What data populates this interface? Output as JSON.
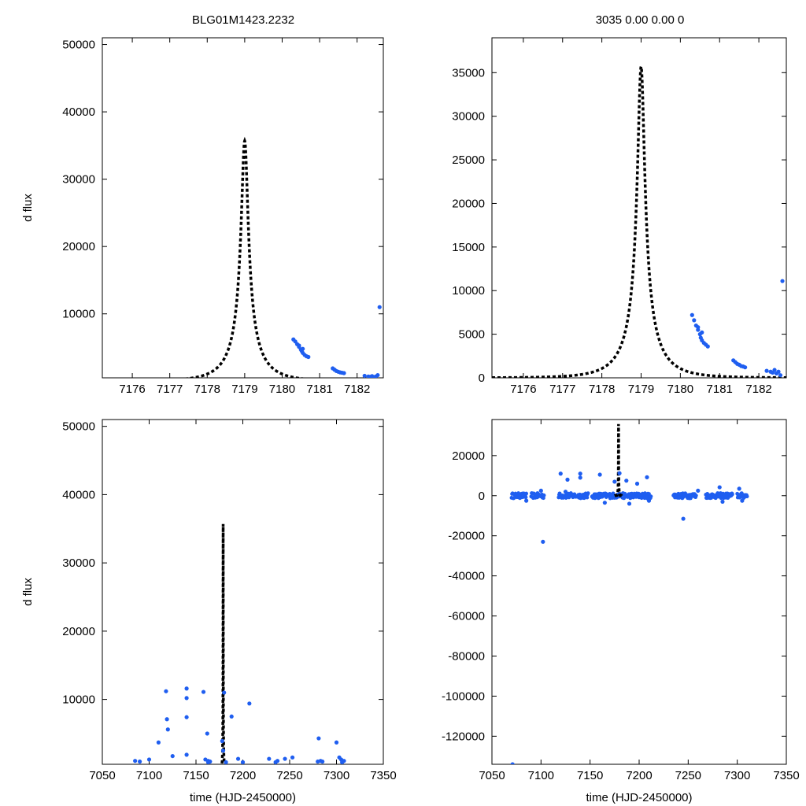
{
  "titles": {
    "left": "BLG01M1423.2232",
    "right": "3035  0.00  0.00  0"
  },
  "chart_data": [
    {
      "type": "scatter",
      "name": "top-left",
      "xlabel": "",
      "ylabel": "d flux",
      "xlim": [
        7175.2,
        7182.7
      ],
      "ylim": [
        500,
        51000
      ],
      "xticks": [
        7176,
        7177,
        7178,
        7179,
        7180,
        7181,
        7182
      ],
      "yticks": [
        10000,
        20000,
        30000,
        40000,
        50000
      ],
      "model": {
        "t0": 7179.0,
        "u0": 0.1,
        "tE": 0.9,
        "fs": 3950
      },
      "points": [
        [
          7180.3,
          6200
        ],
        [
          7180.35,
          5900
        ],
        [
          7180.4,
          5500
        ],
        [
          7180.45,
          5100
        ],
        [
          7180.5,
          4700
        ],
        [
          7180.52,
          4500
        ],
        [
          7180.55,
          4200
        ],
        [
          7180.6,
          3900
        ],
        [
          7180.65,
          3700
        ],
        [
          7180.7,
          3600
        ],
        [
          7180.45,
          5300
        ],
        [
          7180.55,
          4800
        ],
        [
          7181.35,
          1900
        ],
        [
          7181.4,
          1700
        ],
        [
          7181.45,
          1500
        ],
        [
          7181.5,
          1400
        ],
        [
          7181.55,
          1300
        ],
        [
          7181.6,
          1250
        ],
        [
          7181.65,
          1200
        ],
        [
          7182.2,
          800
        ],
        [
          7182.3,
          700
        ],
        [
          7182.35,
          650
        ],
        [
          7182.4,
          750
        ],
        [
          7182.45,
          600
        ],
        [
          7182.5,
          700
        ],
        [
          7182.55,
          900
        ],
        [
          7182.6,
          11000
        ]
      ]
    },
    {
      "type": "scatter",
      "name": "top-right",
      "xlabel": "",
      "ylabel": "",
      "xlim": [
        7175.2,
        7182.7
      ],
      "ylim": [
        0,
        39000
      ],
      "xticks": [
        7176,
        7177,
        7178,
        7179,
        7180,
        7181,
        7182
      ],
      "yticks": [
        0,
        5000,
        10000,
        15000,
        20000,
        25000,
        30000,
        35000
      ],
      "model": {
        "t0": 7179.0,
        "u0": 0.1,
        "tE": 0.9,
        "fs": 3950
      },
      "points": [
        [
          7180.3,
          7200
        ],
        [
          7180.35,
          6600
        ],
        [
          7180.4,
          6000
        ],
        [
          7180.45,
          5500
        ],
        [
          7180.5,
          5000
        ],
        [
          7180.52,
          4600
        ],
        [
          7180.55,
          4300
        ],
        [
          7180.6,
          4000
        ],
        [
          7180.65,
          3800
        ],
        [
          7180.7,
          3600
        ],
        [
          7180.45,
          5800
        ],
        [
          7180.55,
          5200
        ],
        [
          7181.35,
          2000
        ],
        [
          7181.4,
          1800
        ],
        [
          7181.45,
          1600
        ],
        [
          7181.5,
          1500
        ],
        [
          7181.55,
          1350
        ],
        [
          7181.6,
          1300
        ],
        [
          7181.65,
          1200
        ],
        [
          7182.2,
          800
        ],
        [
          7182.3,
          700
        ],
        [
          7182.35,
          600
        ],
        [
          7182.4,
          900
        ],
        [
          7182.45,
          500
        ],
        [
          7182.5,
          700
        ],
        [
          7182.55,
          300
        ],
        [
          7182.6,
          11100
        ]
      ]
    },
    {
      "type": "scatter",
      "name": "bottom-left",
      "xlabel": "time (HJD-2450000)",
      "ylabel": "d flux",
      "xlim": [
        7050,
        7350
      ],
      "ylim": [
        500,
        51000
      ],
      "xticks": [
        7050,
        7100,
        7150,
        7200,
        7250,
        7300,
        7350
      ],
      "yticks": [
        10000,
        20000,
        30000,
        40000,
        50000
      ],
      "model": {
        "t0": 7179.0,
        "u0": 0.1,
        "tE": 0.9,
        "fs": 3950
      },
      "points": [
        [
          7085,
          1000
        ],
        [
          7090,
          900
        ],
        [
          7100,
          1200
        ],
        [
          7110,
          3700
        ],
        [
          7118,
          11200
        ],
        [
          7119,
          7100
        ],
        [
          7120,
          5600
        ],
        [
          7125,
          1700
        ],
        [
          7140,
          11600
        ],
        [
          7140,
          10200
        ],
        [
          7140,
          7400
        ],
        [
          7140,
          1900
        ],
        [
          7158,
          11100
        ],
        [
          7160,
          1200
        ],
        [
          7162,
          5000
        ],
        [
          7163,
          800
        ],
        [
          7163,
          1000
        ],
        [
          7165,
          900
        ],
        [
          7178,
          3900
        ],
        [
          7179,
          2500
        ],
        [
          7180,
          11000
        ],
        [
          7182,
          800
        ],
        [
          7188,
          7500
        ],
        [
          7195,
          1300
        ],
        [
          7200,
          800
        ],
        [
          7207,
          9400
        ],
        [
          7228,
          1300
        ],
        [
          7235,
          800
        ],
        [
          7237,
          1000
        ],
        [
          7245,
          1300
        ],
        [
          7253,
          1500
        ],
        [
          7280,
          900
        ],
        [
          7281,
          4300
        ],
        [
          7283,
          1000
        ],
        [
          7285,
          900
        ],
        [
          7300,
          3700
        ],
        [
          7303,
          1500
        ],
        [
          7305,
          1200
        ],
        [
          7308,
          1000
        ],
        [
          7306,
          800
        ]
      ]
    },
    {
      "type": "scatter",
      "name": "bottom-right",
      "xlabel": "time (HJD-2450000)",
      "ylabel": "",
      "xlim": [
        7050,
        7350
      ],
      "ylim": [
        -134000,
        38000
      ],
      "xticks": [
        7050,
        7100,
        7150,
        7200,
        7250,
        7300,
        7350
      ],
      "yticks": [
        -120000,
        -100000,
        -80000,
        -60000,
        -40000,
        -20000,
        0,
        20000
      ],
      "model": {
        "t0": 7179.0,
        "u0": 0.1,
        "tE": 0.9,
        "fs": 3950
      },
      "baseline_clusters": [
        [
          7070,
          7085
        ],
        [
          7090,
          7103
        ],
        [
          7118,
          7136
        ],
        [
          7138,
          7148
        ],
        [
          7152,
          7180
        ],
        [
          7182,
          7212
        ],
        [
          7235,
          7258
        ],
        [
          7268,
          7295
        ],
        [
          7300,
          7310
        ]
      ],
      "points": [
        [
          7071,
          -134000
        ],
        [
          7102,
          -23000
        ],
        [
          7120,
          11000
        ],
        [
          7127,
          8000
        ],
        [
          7140,
          11000
        ],
        [
          7140,
          9000
        ],
        [
          7160,
          10500
        ],
        [
          7175,
          7000
        ],
        [
          7180,
          11200
        ],
        [
          7187,
          7500
        ],
        [
          7198,
          6000
        ],
        [
          7208,
          9200
        ],
        [
          7245,
          -11500
        ],
        [
          7282,
          4200
        ],
        [
          7302,
          3500
        ],
        [
          7305,
          -2500
        ],
        [
          7085,
          -2500
        ],
        [
          7100,
          2500
        ],
        [
          7125,
          2000
        ],
        [
          7165,
          -3500
        ],
        [
          7190,
          -4000
        ],
        [
          7210,
          -2500
        ],
        [
          7260,
          2500
        ],
        [
          7285,
          -3000
        ]
      ]
    }
  ]
}
